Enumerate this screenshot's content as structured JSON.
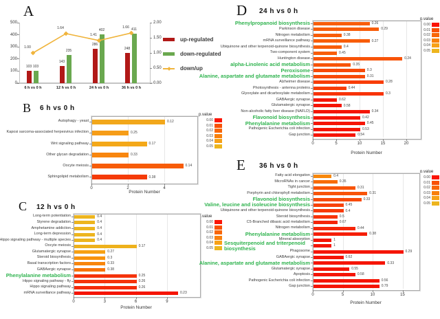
{
  "highlight_color": "#2fb34e",
  "chart_data": [
    {
      "panel": "A",
      "type": "bar+line",
      "categories": [
        "6 h vs 0 h",
        "12 h vs 0 h",
        "24 h vs 0 h",
        "36 h vs 0 h"
      ],
      "series": [
        {
          "name": "up-regulated",
          "type": "bar",
          "color": "#b11917",
          "values": [
            103,
            143,
            286,
            248
          ]
        },
        {
          "name": "down-regulated",
          "type": "bar",
          "color": "#6aa84f",
          "values": [
            103,
            235,
            402,
            411
          ]
        },
        {
          "name": "down/up",
          "type": "line",
          "color": "#f0b43c",
          "values": [
            1.0,
            1.64,
            1.41,
            1.66
          ],
          "labels": [
            "1.00",
            "1.64",
            "1.41",
            "1.66"
          ]
        }
      ],
      "left_axis_ticks": [
        "0",
        "100",
        "200",
        "300",
        "400",
        "500"
      ],
      "right_axis_ticks": [
        "0.00",
        "0.50",
        "1.00",
        "1.50",
        "2.00"
      ],
      "left_max": 500,
      "right_max": 2
    },
    {
      "panel": "B",
      "type": "bar",
      "title": "6 h vs 0 h",
      "xlabel": "Protein Number",
      "x_ticks": [
        "0",
        "2",
        "4"
      ],
      "x_tick_values": [
        0,
        2,
        4
      ],
      "legend_title": "p.value",
      "legend": [
        {
          "label": "0.00",
          "color": "#fb1507"
        },
        {
          "label": "0.01",
          "color": "#f85106"
        },
        {
          "label": "0.02",
          "color": "#f86607"
        },
        {
          "label": "0.03",
          "color": "#f8800c"
        },
        {
          "label": "0.04",
          "color": "#f7a117"
        },
        {
          "label": "0.05",
          "color": "#edb51e"
        }
      ],
      "rows": [
        {
          "label": "Autophagy - yeast",
          "value": 4,
          "p": "0.12",
          "color": "#f2a71b"
        },
        {
          "label": "Kaposi sarcoma-associated herpesvirus infection",
          "value": 2,
          "p": "0.25",
          "color": "#f69d18"
        },
        {
          "label": "Wnt signaling pathway",
          "value": 3,
          "p": "0.17",
          "color": "#f4a819"
        },
        {
          "label": "Other glycan degradation",
          "value": 2,
          "p": "0.33",
          "color": "#f8860f"
        },
        {
          "label": "Oocyte meiosis",
          "value": 5,
          "p": "0.14",
          "color": "#f75c08"
        },
        {
          "label": "Sphingolipid metabolism",
          "value": 3,
          "p": "0.38",
          "color": "#f53b07"
        }
      ]
    },
    {
      "panel": "C",
      "type": "bar",
      "title": "12 h vs 0 h",
      "xlabel": "Protein Number",
      "x_ticks": [
        "0",
        "3",
        "6",
        "9"
      ],
      "x_tick_values": [
        0,
        3,
        6,
        9
      ],
      "legend_title": "p.value",
      "legend": [
        {
          "label": "0.00",
          "color": "#fb1507"
        },
        {
          "label": "0.01",
          "color": "#f85106"
        },
        {
          "label": "0.02",
          "color": "#f86607"
        },
        {
          "label": "0.03",
          "color": "#f8800c"
        },
        {
          "label": "0.04",
          "color": "#f7a117"
        },
        {
          "label": "0.05",
          "color": "#edb51e"
        }
      ],
      "rows": [
        {
          "label": "Long-term potentiation",
          "value": 2,
          "p": "0.4",
          "color": "#edb51e"
        },
        {
          "label": "Styrene degradation",
          "value": 2,
          "p": "0.4",
          "color": "#edb51e"
        },
        {
          "label": "Amphetamine addiction",
          "value": 2,
          "p": "0.4",
          "color": "#edb51e"
        },
        {
          "label": "Long-term depression",
          "value": 2,
          "p": "0.4",
          "color": "#edb51e"
        },
        {
          "label": "Hippo signaling pathway - multiple species",
          "value": 2,
          "p": "0.4",
          "color": "#edb51e"
        },
        {
          "label": "Oocyte meiosis",
          "value": 6,
          "p": "0.17",
          "color": "#eeb11c"
        },
        {
          "label": "Glutamatergic synapse",
          "value": 3,
          "p": "0.27",
          "color": "#f7a113"
        },
        {
          "label": "Steroid biosynthesis",
          "value": 3,
          "p": "0.3",
          "color": "#f8930d"
        },
        {
          "label": "Basal transcription factors",
          "value": 3,
          "p": "0.33",
          "color": "#f8860d"
        },
        {
          "label": "GABAergic synapse",
          "value": 3,
          "p": "0.38",
          "color": "#f87408"
        },
        {
          "label": "Phenylalanine metabolism",
          "value": 6,
          "p": "0.25",
          "color": "#f5330b",
          "highlight": true
        },
        {
          "label": "Hippo signaling pathway - fly",
          "value": 6,
          "p": "0.26",
          "color": "#f5330b"
        },
        {
          "label": "Hippo signaling pathway",
          "value": 6,
          "p": "0.26",
          "color": "#f52a08"
        },
        {
          "label": "mRNA surveillance pathway",
          "value": 10,
          "p": "0.23",
          "color": "#f51505"
        }
      ]
    },
    {
      "panel": "D",
      "type": "bar",
      "title": "24 h vs 0 h",
      "xlabel": "Protein Number",
      "x_ticks": [
        "0",
        "5",
        "10",
        "15",
        "20"
      ],
      "x_tick_values": [
        0,
        5,
        10,
        15,
        20
      ],
      "legend_title": "p.value",
      "legend": [
        {
          "label": "0.00",
          "color": "#fb1507"
        },
        {
          "label": "0.01",
          "color": "#f85106"
        },
        {
          "label": "0.02",
          "color": "#f86607"
        },
        {
          "label": "0.03",
          "color": "#f8800c"
        },
        {
          "label": "0.04",
          "color": "#f7a117"
        },
        {
          "label": "0.05",
          "color": "#edb51e"
        }
      ],
      "rows": [
        {
          "label": "Phenylpropanoid biosynthesis",
          "value": 12,
          "p": "0.26",
          "color": "#f85d09",
          "highlight": true
        },
        {
          "label": "Parkinson disease",
          "value": 14,
          "p": "0.29",
          "color": "#f85d09"
        },
        {
          "label": "Nitrogen metabolism",
          "value": 6,
          "p": "0.38",
          "color": "#f85d09"
        },
        {
          "label": "mRNA surveillance pathway",
          "value": 12,
          "p": "0.27",
          "color": "#f85d09"
        },
        {
          "label": "Ubiquinone and other terpenoid-quinone biosynthesis",
          "value": 6,
          "p": "0.4",
          "color": "#f85d09"
        },
        {
          "label": "Two-component system",
          "value": 5,
          "p": "0.45",
          "color": "#f85d09"
        },
        {
          "label": "Huntington disease",
          "value": 19,
          "p": "0.24",
          "color": "#f85408"
        },
        {
          "label": "alpha-Linolenic acid metabolism",
          "value": 8,
          "p": "0.35",
          "color": "#f85408",
          "highlight": true
        },
        {
          "label": "Peroxisome",
          "value": 11,
          "p": "0.3",
          "color": "#f84a08",
          "highlight": true
        },
        {
          "label": "Alanine, aspartate and glutamate metabolism",
          "value": 11,
          "p": "0.31",
          "color": "#f84a08",
          "highlight": true
        },
        {
          "label": "Alzheimer disease",
          "value": 15,
          "p": "0.28",
          "color": "#f83d07"
        },
        {
          "label": "Photosynthesis - antenna proteins",
          "value": 7,
          "p": "0.44",
          "color": "#f83d07"
        },
        {
          "label": "Glyoxylate and dicarboxylate metabolism",
          "value": 15,
          "p": "0.3",
          "color": "#f83307"
        },
        {
          "label": "GABAergic synapse",
          "value": 5,
          "p": "0.62",
          "color": "#f51505"
        },
        {
          "label": "Glutamatergic synapse",
          "value": 6,
          "p": "0.58",
          "color": "#f51505"
        },
        {
          "label": "Non-alcoholic fatty liver disease (NAFLD)",
          "value": 12,
          "p": "0.34",
          "color": "#f51505"
        },
        {
          "label": "Flavonoid biosynthesis",
          "value": 10,
          "p": "0.42",
          "color": "#f51505",
          "highlight": true
        },
        {
          "label": "Phenylalanine metabolism",
          "value": 11,
          "p": "0.45",
          "color": "#f51505",
          "highlight": true
        },
        {
          "label": "Pathogenic Escherichia coli infection",
          "value": 10,
          "p": "0.53",
          "color": "#f51505"
        },
        {
          "label": "Gap junction",
          "value": 9,
          "p": "0.54",
          "color": "#f51505"
        }
      ]
    },
    {
      "panel": "E",
      "type": "bar",
      "title": "36 h vs 0 h",
      "xlabel": "Protein Number",
      "x_ticks": [
        "0",
        "5",
        "10",
        "15"
      ],
      "x_tick_values": [
        0,
        5,
        10,
        15
      ],
      "legend_title": "p.value",
      "legend": [
        {
          "label": "0.00",
          "color": "#fb1507"
        },
        {
          "label": "0.01",
          "color": "#f85106"
        },
        {
          "label": "0.02",
          "color": "#f86607"
        },
        {
          "label": "0.03",
          "color": "#f8800c"
        },
        {
          "label": "0.04",
          "color": "#f7a117"
        },
        {
          "label": "0.05",
          "color": "#edb51e"
        }
      ],
      "rows": [
        {
          "label": "Fatty acid elongation",
          "value": 3,
          "p": "0.4",
          "color": "#f8880c"
        },
        {
          "label": "MicroRNAs in cancer",
          "value": 4,
          "p": "0.35",
          "color": "#f86c08"
        },
        {
          "label": "Tight junction",
          "value": 7,
          "p": "0.31",
          "color": "#f85408"
        },
        {
          "label": "Porphyrin and chlorophyll metabolism",
          "value": 9,
          "p": "0.31",
          "color": "#f85408"
        },
        {
          "label": "Flavonoid biosynthesis",
          "value": 8,
          "p": "0.33",
          "color": "#f84a08",
          "highlight": true
        },
        {
          "label": "Valine, leucine and isoleucine biosynthesis",
          "value": 5,
          "p": "0.45",
          "color": "#f84208",
          "highlight": true
        },
        {
          "label": "Ubiquinone and other terpenoid-quinone biosynthesis",
          "value": 5,
          "p": "0.4",
          "color": "#f83a07"
        },
        {
          "label": "Steroid biosynthesis",
          "value": 4,
          "p": "0.5",
          "color": "#f83307"
        },
        {
          "label": "C5-Branched dibasic acid metabolism",
          "value": 4,
          "p": "0.67",
          "color": "#f52508"
        },
        {
          "label": "Nitrogen metabolism",
          "value": 7,
          "p": "0.44",
          "color": "#f52508"
        },
        {
          "label": "Phenylalanine metabolism",
          "value": 9,
          "p": "0.38",
          "color": "#f51e06",
          "highlight": true
        },
        {
          "label": "Mineral absorption",
          "value": 3,
          "p": "1",
          "color": "#f51505"
        },
        {
          "label": "Sesquiterpenoid and triterpenoid biosynthesis",
          "value": 3,
          "p": "1",
          "color": "#f51505",
          "highlight": true,
          "wrap": true
        },
        {
          "label": "Phagosome",
          "value": 15,
          "p": "0.29",
          "color": "#f51505"
        },
        {
          "label": "GABAergic synapse",
          "value": 5,
          "p": "0.62",
          "color": "#f51505"
        },
        {
          "label": "Alanine, aspartate and glutamate metabolism",
          "value": 12,
          "p": "0.33",
          "color": "#f51505",
          "highlight": true
        },
        {
          "label": "Glutamatergic synapse",
          "value": 6,
          "p": "0.55",
          "color": "#f51505"
        },
        {
          "label": "Apoptosis",
          "value": 7,
          "p": "0.58",
          "color": "#f51505"
        },
        {
          "label": "Pathogenic Escherichia coli infection",
          "value": 11,
          "p": "0.56",
          "color": "#f51505"
        },
        {
          "label": "Gap junction",
          "value": 11,
          "p": "0.79",
          "color": "#f51505"
        }
      ]
    }
  ]
}
